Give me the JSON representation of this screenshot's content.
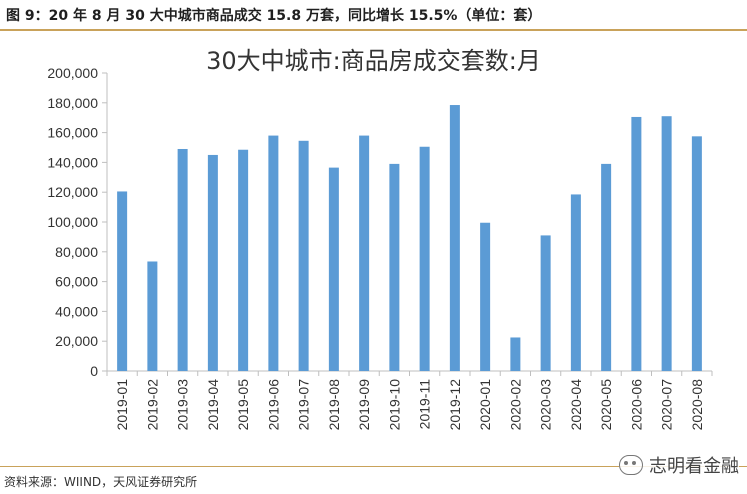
{
  "header": {
    "caption": "图 9：20 年 8 月 30 大中城市商品成交 15.8 万套，同比增长 15.5%（单位：套）"
  },
  "footer": {
    "source": "资料来源：WIIND，天风证券研究所",
    "watermark": "志明看金融"
  },
  "colors": {
    "bar": "#5b9bd5",
    "axis": "#bfbfbf",
    "header_rule": "#c9a25a"
  },
  "chart_data": {
    "type": "bar",
    "title": "30大中城市:商品房成交套数:月",
    "xlabel": "",
    "ylabel": "",
    "ylim": [
      0,
      200000
    ],
    "yticks": [
      "0",
      "20,000",
      "40,000",
      "60,000",
      "80,000",
      "100,000",
      "120,000",
      "140,000",
      "160,000",
      "180,000",
      "200,000"
    ],
    "ytick_values": [
      0,
      20000,
      40000,
      60000,
      80000,
      100000,
      120000,
      140000,
      160000,
      180000,
      200000
    ],
    "grid": false,
    "categories": [
      "2019-01",
      "2019-02",
      "2019-03",
      "2019-04",
      "2019-05",
      "2019-06",
      "2019-07",
      "2019-08",
      "2019-09",
      "2019-10",
      "2019-11",
      "2019-12",
      "2020-01",
      "2020-02",
      "2020-03",
      "2020-04",
      "2020-05",
      "2020-06",
      "2020-07",
      "2020-08"
    ],
    "values": [
      120500,
      73500,
      149000,
      145000,
      148500,
      158000,
      154500,
      136500,
      158000,
      139000,
      150500,
      178500,
      99500,
      22500,
      91000,
      118500,
      139000,
      170500,
      171000,
      157500
    ]
  }
}
